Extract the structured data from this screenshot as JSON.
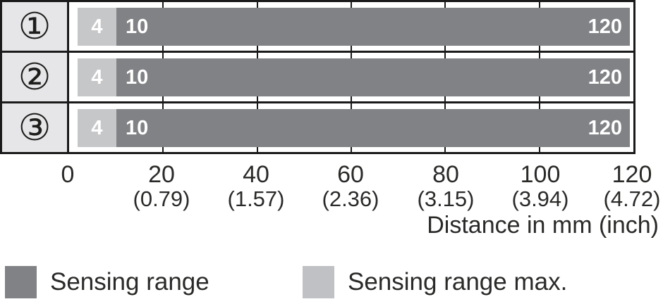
{
  "chart_data": {
    "type": "bar",
    "orientation": "horizontal",
    "title": "",
    "xlabel": "Distance in mm (inch)",
    "axis": {
      "unit": "mm (inch)",
      "min_mm": 0,
      "max_mm": 120,
      "ticks_mm": [
        "0",
        "20",
        "40",
        "60",
        "80",
        "100",
        "120"
      ],
      "ticks_inch": [
        "",
        "(0.79)",
        "(1.57)",
        "(2.36)",
        "(3.15)",
        "(3.94)",
        "(4.72)"
      ],
      "grid": true
    },
    "categories": [
      "①",
      "②",
      "③"
    ],
    "rows": [
      {
        "id": "①",
        "sensing_range_max_start_mm": 4,
        "sensing_range_start_mm": 10,
        "sensing_range_end_mm": 120,
        "labels": {
          "max_start": "4",
          "start": "10",
          "end": "120"
        }
      },
      {
        "id": "②",
        "sensing_range_max_start_mm": 4,
        "sensing_range_start_mm": 10,
        "sensing_range_end_mm": 120,
        "labels": {
          "max_start": "4",
          "start": "10",
          "end": "120"
        }
      },
      {
        "id": "③",
        "sensing_range_max_start_mm": 4,
        "sensing_range_start_mm": 10,
        "sensing_range_end_mm": 120,
        "labels": {
          "max_start": "4",
          "start": "10",
          "end": "120"
        }
      }
    ],
    "legend": [
      {
        "label": "Sensing range",
        "color": "#808285"
      },
      {
        "label": "Sensing range max.",
        "color": "#c0c1c4"
      }
    ],
    "colors": {
      "sensing_range": "#808285",
      "sensing_range_max": "#c6c7c9",
      "row_header_bg": "#e6e6e8",
      "line": "#1a1a1a",
      "text": "#2a2a28"
    },
    "legend_position": "bottom"
  }
}
